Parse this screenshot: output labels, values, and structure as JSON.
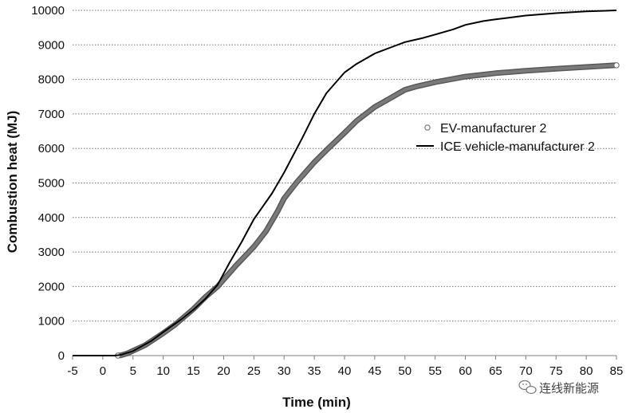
{
  "chart_data": {
    "type": "line",
    "title": "",
    "xlabel": "Time (min)",
    "ylabel": "Combustion heat (MJ)",
    "xlim": [
      -5,
      85
    ],
    "ylim": [
      0,
      10000
    ],
    "xticks": [
      -5,
      0,
      5,
      10,
      15,
      20,
      25,
      30,
      35,
      40,
      45,
      50,
      55,
      60,
      65,
      70,
      75,
      80,
      85
    ],
    "yticks": [
      0,
      1000,
      2000,
      3000,
      4000,
      5000,
      6000,
      7000,
      8000,
      9000,
      10000
    ],
    "grid": "horizontal dotted",
    "legend_position": "right-middle",
    "series": [
      {
        "name": "EV-manufacturer 2",
        "style": "thick gray line with markers",
        "color": "#6e6e6e",
        "points": [
          [
            2.5,
            0
          ],
          [
            3,
            10
          ],
          [
            4,
            60
          ],
          [
            5,
            140
          ],
          [
            7,
            300
          ],
          [
            10,
            650
          ],
          [
            12,
            900
          ],
          [
            15,
            1350
          ],
          [
            17,
            1700
          ],
          [
            19,
            2000
          ],
          [
            20,
            2200
          ],
          [
            22,
            2600
          ],
          [
            25,
            3150
          ],
          [
            27,
            3600
          ],
          [
            29,
            4200
          ],
          [
            30,
            4550
          ],
          [
            32,
            5000
          ],
          [
            35,
            5600
          ],
          [
            37,
            5950
          ],
          [
            40,
            6450
          ],
          [
            42,
            6800
          ],
          [
            45,
            7200
          ],
          [
            48,
            7500
          ],
          [
            50,
            7700
          ],
          [
            52,
            7800
          ],
          [
            55,
            7920
          ],
          [
            60,
            8080
          ],
          [
            65,
            8180
          ],
          [
            70,
            8250
          ],
          [
            75,
            8310
          ],
          [
            80,
            8360
          ],
          [
            85,
            8410
          ]
        ]
      },
      {
        "name": "ICE vehicle-manufacturer 2",
        "style": "solid black line",
        "color": "#000000",
        "points": [
          [
            -5,
            0
          ],
          [
            2,
            0
          ],
          [
            3,
            20
          ],
          [
            5,
            130
          ],
          [
            8,
            420
          ],
          [
            10,
            680
          ],
          [
            13,
            1050
          ],
          [
            15,
            1330
          ],
          [
            17,
            1650
          ],
          [
            19,
            2050
          ],
          [
            21,
            2700
          ],
          [
            23,
            3300
          ],
          [
            25,
            3950
          ],
          [
            28,
            4700
          ],
          [
            30,
            5300
          ],
          [
            33,
            6300
          ],
          [
            35,
            7000
          ],
          [
            37,
            7600
          ],
          [
            39,
            8000
          ],
          [
            40,
            8200
          ],
          [
            42,
            8450
          ],
          [
            45,
            8750
          ],
          [
            48,
            8950
          ],
          [
            50,
            9080
          ],
          [
            53,
            9200
          ],
          [
            55,
            9300
          ],
          [
            58,
            9450
          ],
          [
            60,
            9580
          ],
          [
            63,
            9690
          ],
          [
            65,
            9740
          ],
          [
            70,
            9850
          ],
          [
            75,
            9920
          ],
          [
            80,
            9970
          ],
          [
            85,
            10000
          ]
        ]
      }
    ]
  },
  "watermark": {
    "text": "连线新能源",
    "icon": "wechat-icon"
  }
}
